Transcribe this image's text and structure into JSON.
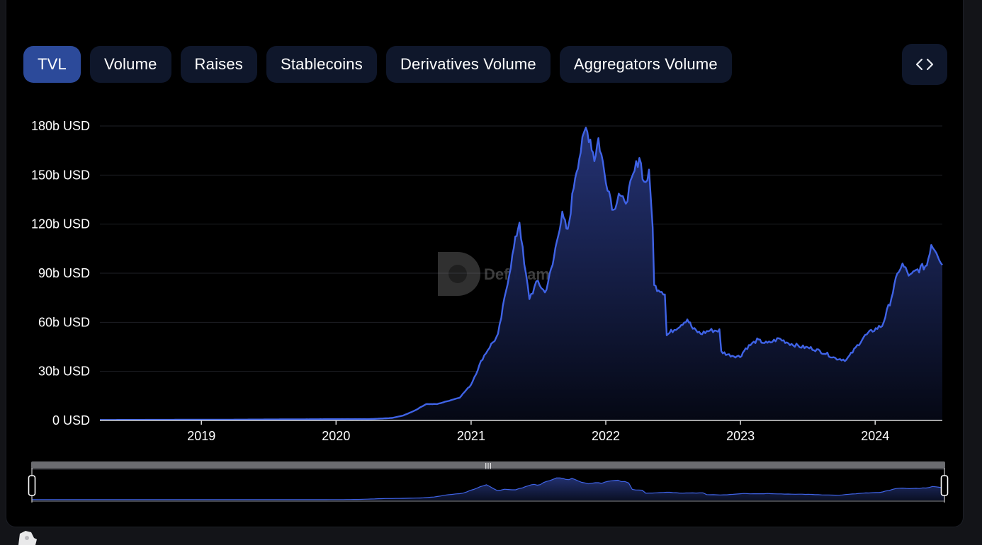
{
  "tabs": [
    {
      "label": "TVL",
      "active": true
    },
    {
      "label": "Volume",
      "active": false
    },
    {
      "label": "Raises",
      "active": false
    },
    {
      "label": "Stablecoins",
      "active": false
    },
    {
      "label": "Derivatives Volume",
      "active": false
    },
    {
      "label": "Aggregators Volume",
      "active": false
    }
  ],
  "embed_button": {
    "icon": "code-brackets-icon",
    "glyph": "<>"
  },
  "watermark": {
    "text": "DefiLlama"
  },
  "colors": {
    "line": "#3f63e6",
    "tab_active": "#2c4a9a",
    "tab_inactive": "#0f172b",
    "background": "#000000"
  },
  "chart_data": {
    "type": "area",
    "title": "",
    "xlabel": "",
    "ylabel": "",
    "y_unit": "USD",
    "ylim": [
      0,
      180
    ],
    "y_ticks": [
      {
        "value": 0,
        "label": "0 USD"
      },
      {
        "value": 30,
        "label": "30b USD"
      },
      {
        "value": 60,
        "label": "60b USD"
      },
      {
        "value": 90,
        "label": "90b USD"
      },
      {
        "value": 120,
        "label": "120b USD"
      },
      {
        "value": 150,
        "label": "150b USD"
      },
      {
        "value": 180,
        "label": "180b USD"
      }
    ],
    "xlim": [
      "2018-04-01",
      "2024-07-01"
    ],
    "x_ticks": [
      {
        "date": "2019-01-01",
        "label": "2019"
      },
      {
        "date": "2020-01-01",
        "label": "2020"
      },
      {
        "date": "2021-01-01",
        "label": "2021"
      },
      {
        "date": "2022-01-01",
        "label": "2022"
      },
      {
        "date": "2023-01-01",
        "label": "2023"
      },
      {
        "date": "2024-01-01",
        "label": "2024"
      }
    ],
    "grid": true,
    "legend": "none",
    "series": [
      {
        "values_unit": "billion USD",
        "points": [
          [
            "2018-04-01",
            0.3
          ],
          [
            "2018-10-01",
            0.4
          ],
          [
            "2019-04-01",
            0.5
          ],
          [
            "2019-10-01",
            0.7
          ],
          [
            "2020-01-01",
            0.8
          ],
          [
            "2020-04-01",
            0.8
          ],
          [
            "2020-06-01",
            1.5
          ],
          [
            "2020-07-01",
            3
          ],
          [
            "2020-08-01",
            6
          ],
          [
            "2020-09-01",
            10
          ],
          [
            "2020-10-01",
            10
          ],
          [
            "2020-11-01",
            12
          ],
          [
            "2020-12-01",
            14
          ],
          [
            "2021-01-01",
            22
          ],
          [
            "2021-02-01",
            38
          ],
          [
            "2021-02-20",
            45
          ],
          [
            "2021-03-15",
            52
          ],
          [
            "2021-04-10",
            85
          ],
          [
            "2021-05-01",
            110
          ],
          [
            "2021-05-12",
            122
          ],
          [
            "2021-05-25",
            95
          ],
          [
            "2021-06-08",
            75
          ],
          [
            "2021-07-01",
            85
          ],
          [
            "2021-07-20",
            78
          ],
          [
            "2021-08-10",
            95
          ],
          [
            "2021-08-25",
            115
          ],
          [
            "2021-09-05",
            125
          ],
          [
            "2021-09-20",
            115
          ],
          [
            "2021-10-10",
            150
          ],
          [
            "2021-10-25",
            165
          ],
          [
            "2021-11-08",
            178
          ],
          [
            "2021-11-20",
            172
          ],
          [
            "2021-12-01",
            160
          ],
          [
            "2021-12-12",
            172
          ],
          [
            "2021-12-28",
            152
          ],
          [
            "2022-01-10",
            140
          ],
          [
            "2022-01-22",
            128
          ],
          [
            "2022-02-05",
            140
          ],
          [
            "2022-02-20",
            132
          ],
          [
            "2022-03-05",
            140
          ],
          [
            "2022-03-20",
            152
          ],
          [
            "2022-04-02",
            162
          ],
          [
            "2022-04-15",
            145
          ],
          [
            "2022-04-28",
            150
          ],
          [
            "2022-05-08",
            120
          ],
          [
            "2022-05-12",
            82
          ],
          [
            "2022-05-28",
            80
          ],
          [
            "2022-06-10",
            78
          ],
          [
            "2022-06-15",
            52
          ],
          [
            "2022-07-01",
            55
          ],
          [
            "2022-07-20",
            58
          ],
          [
            "2022-08-10",
            62
          ],
          [
            "2022-08-25",
            56
          ],
          [
            "2022-09-15",
            53
          ],
          [
            "2022-10-10",
            55
          ],
          [
            "2022-11-05",
            55
          ],
          [
            "2022-11-10",
            42
          ],
          [
            "2022-12-01",
            40
          ],
          [
            "2022-12-31",
            39
          ],
          [
            "2023-01-15",
            44
          ],
          [
            "2023-02-15",
            49
          ],
          [
            "2023-03-15",
            47
          ],
          [
            "2023-04-15",
            50
          ],
          [
            "2023-05-15",
            47
          ],
          [
            "2023-06-15",
            45
          ],
          [
            "2023-07-15",
            44
          ],
          [
            "2023-08-20",
            41
          ],
          [
            "2023-09-15",
            38
          ],
          [
            "2023-10-15",
            37
          ],
          [
            "2023-11-05",
            43
          ],
          [
            "2023-12-01",
            51
          ],
          [
            "2023-12-25",
            55
          ],
          [
            "2024-01-20",
            58
          ],
          [
            "2024-02-10",
            72
          ],
          [
            "2024-03-05",
            92
          ],
          [
            "2024-03-15",
            95
          ],
          [
            "2024-04-05",
            88
          ],
          [
            "2024-04-25",
            92
          ],
          [
            "2024-05-20",
            95
          ],
          [
            "2024-06-01",
            108
          ],
          [
            "2024-06-15",
            104
          ],
          [
            "2024-07-01",
            95
          ]
        ]
      }
    ]
  }
}
